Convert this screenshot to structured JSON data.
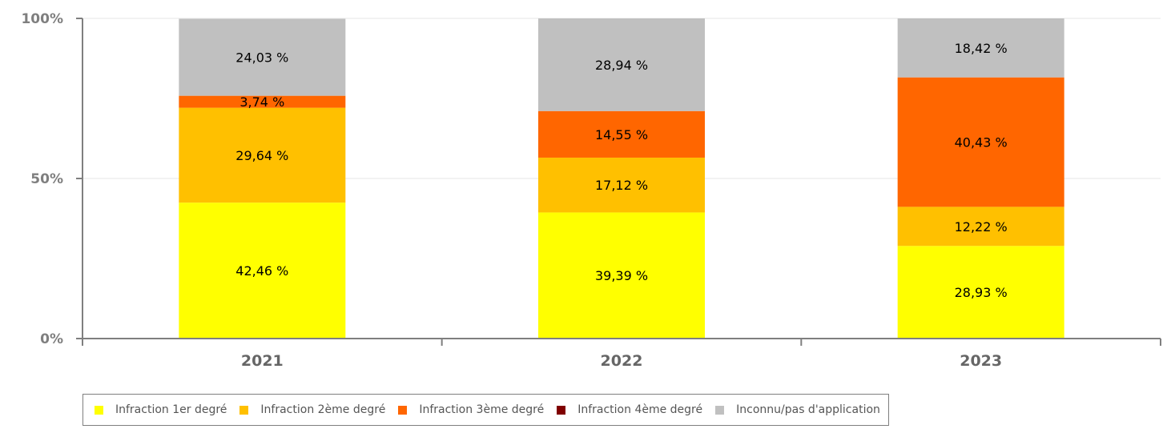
{
  "chart_data": {
    "type": "bar",
    "stacked": true,
    "normalized": true,
    "categories": [
      "2021",
      "2022",
      "2023"
    ],
    "y_ticks": [
      "0%",
      "50%",
      "100%"
    ],
    "ylim": [
      0,
      100
    ],
    "grid": true,
    "legend_position": "bottom",
    "series": [
      {
        "name": "Infraction 1er degré",
        "color": "#ffff00",
        "values": [
          42.46,
          39.39,
          28.93
        ],
        "labels": [
          "42,46 %",
          "39,39 %",
          "28,93 %"
        ]
      },
      {
        "name": "Infraction 2ème degré",
        "color": "#ffc000",
        "values": [
          29.64,
          17.12,
          12.22
        ],
        "labels": [
          "29,64 %",
          "17,12 %",
          "12,22 %"
        ]
      },
      {
        "name": "Infraction 3ème degré",
        "color": "#ff6600",
        "values": [
          3.74,
          14.55,
          40.43
        ],
        "labels": [
          "3,74 %",
          "14,55 %",
          "40,43 %"
        ]
      },
      {
        "name": "Infraction 4ème degré",
        "color": "#800000",
        "values": [
          0,
          0,
          0
        ],
        "labels": [
          "",
          "",
          ""
        ]
      },
      {
        "name": "Inconnu/pas d'application",
        "color": "#c0c0c0",
        "values": [
          24.03,
          28.94,
          18.42
        ],
        "labels": [
          "24,03 %",
          "28,94 %",
          "18,42 %"
        ]
      }
    ]
  }
}
